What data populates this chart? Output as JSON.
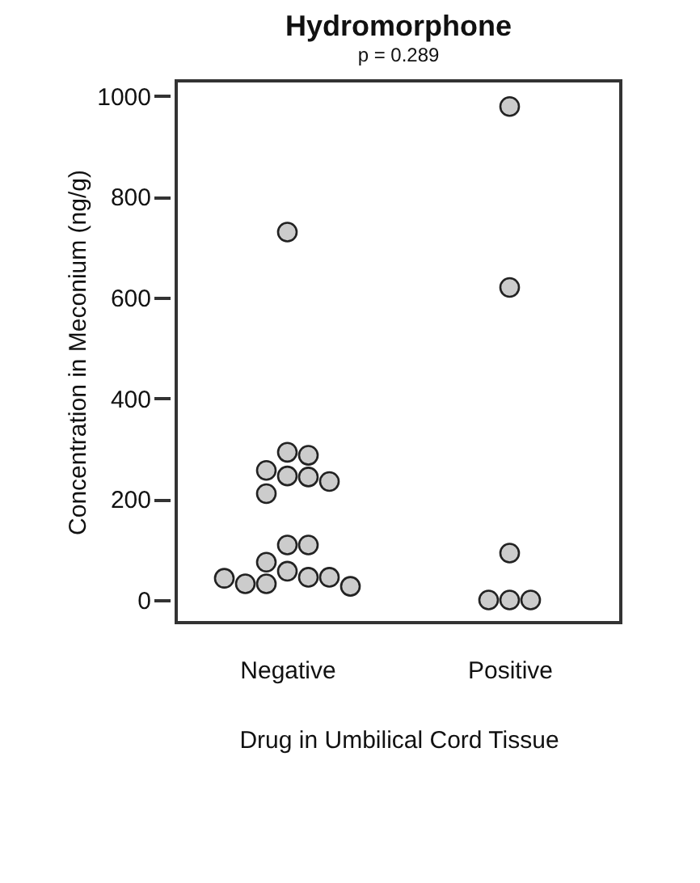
{
  "chart_data": {
    "type": "scatter",
    "title": "Hydromorphone",
    "subtitle": "p = 0.289",
    "xlabel": "Drug in Umbilical Cord Tissue",
    "ylabel": "Concentration in Meconium (ng/g)",
    "categories": [
      "Negative",
      "Positive"
    ],
    "series": [
      {
        "color": "#cccccc",
        "x": [
          "Negative",
          "Negative",
          "Negative",
          "Negative",
          "Negative",
          "Negative",
          "Negative",
          "Negative",
          "Negative",
          "Negative",
          "Negative",
          "Negative",
          "Negative",
          "Negative",
          "Negative",
          "Negative",
          "Negative",
          "Negative",
          "Positive",
          "Positive",
          "Positive",
          "Positive",
          "Positive",
          "Positive"
        ],
        "values": [
          730,
          293,
          287,
          257,
          246,
          244,
          235,
          211,
          109,
          109,
          75,
          57,
          45,
          45,
          32,
          32,
          27,
          43,
          979,
          620,
          93,
          0,
          0,
          0
        ]
      }
    ],
    "ylim": [
      -45,
      1030
    ],
    "yticks": [
      0,
      200,
      400,
      600,
      800,
      {
        "value": 1000,
        "label": "1000"
      }
    ],
    "grid": false,
    "marker": "circle"
  }
}
